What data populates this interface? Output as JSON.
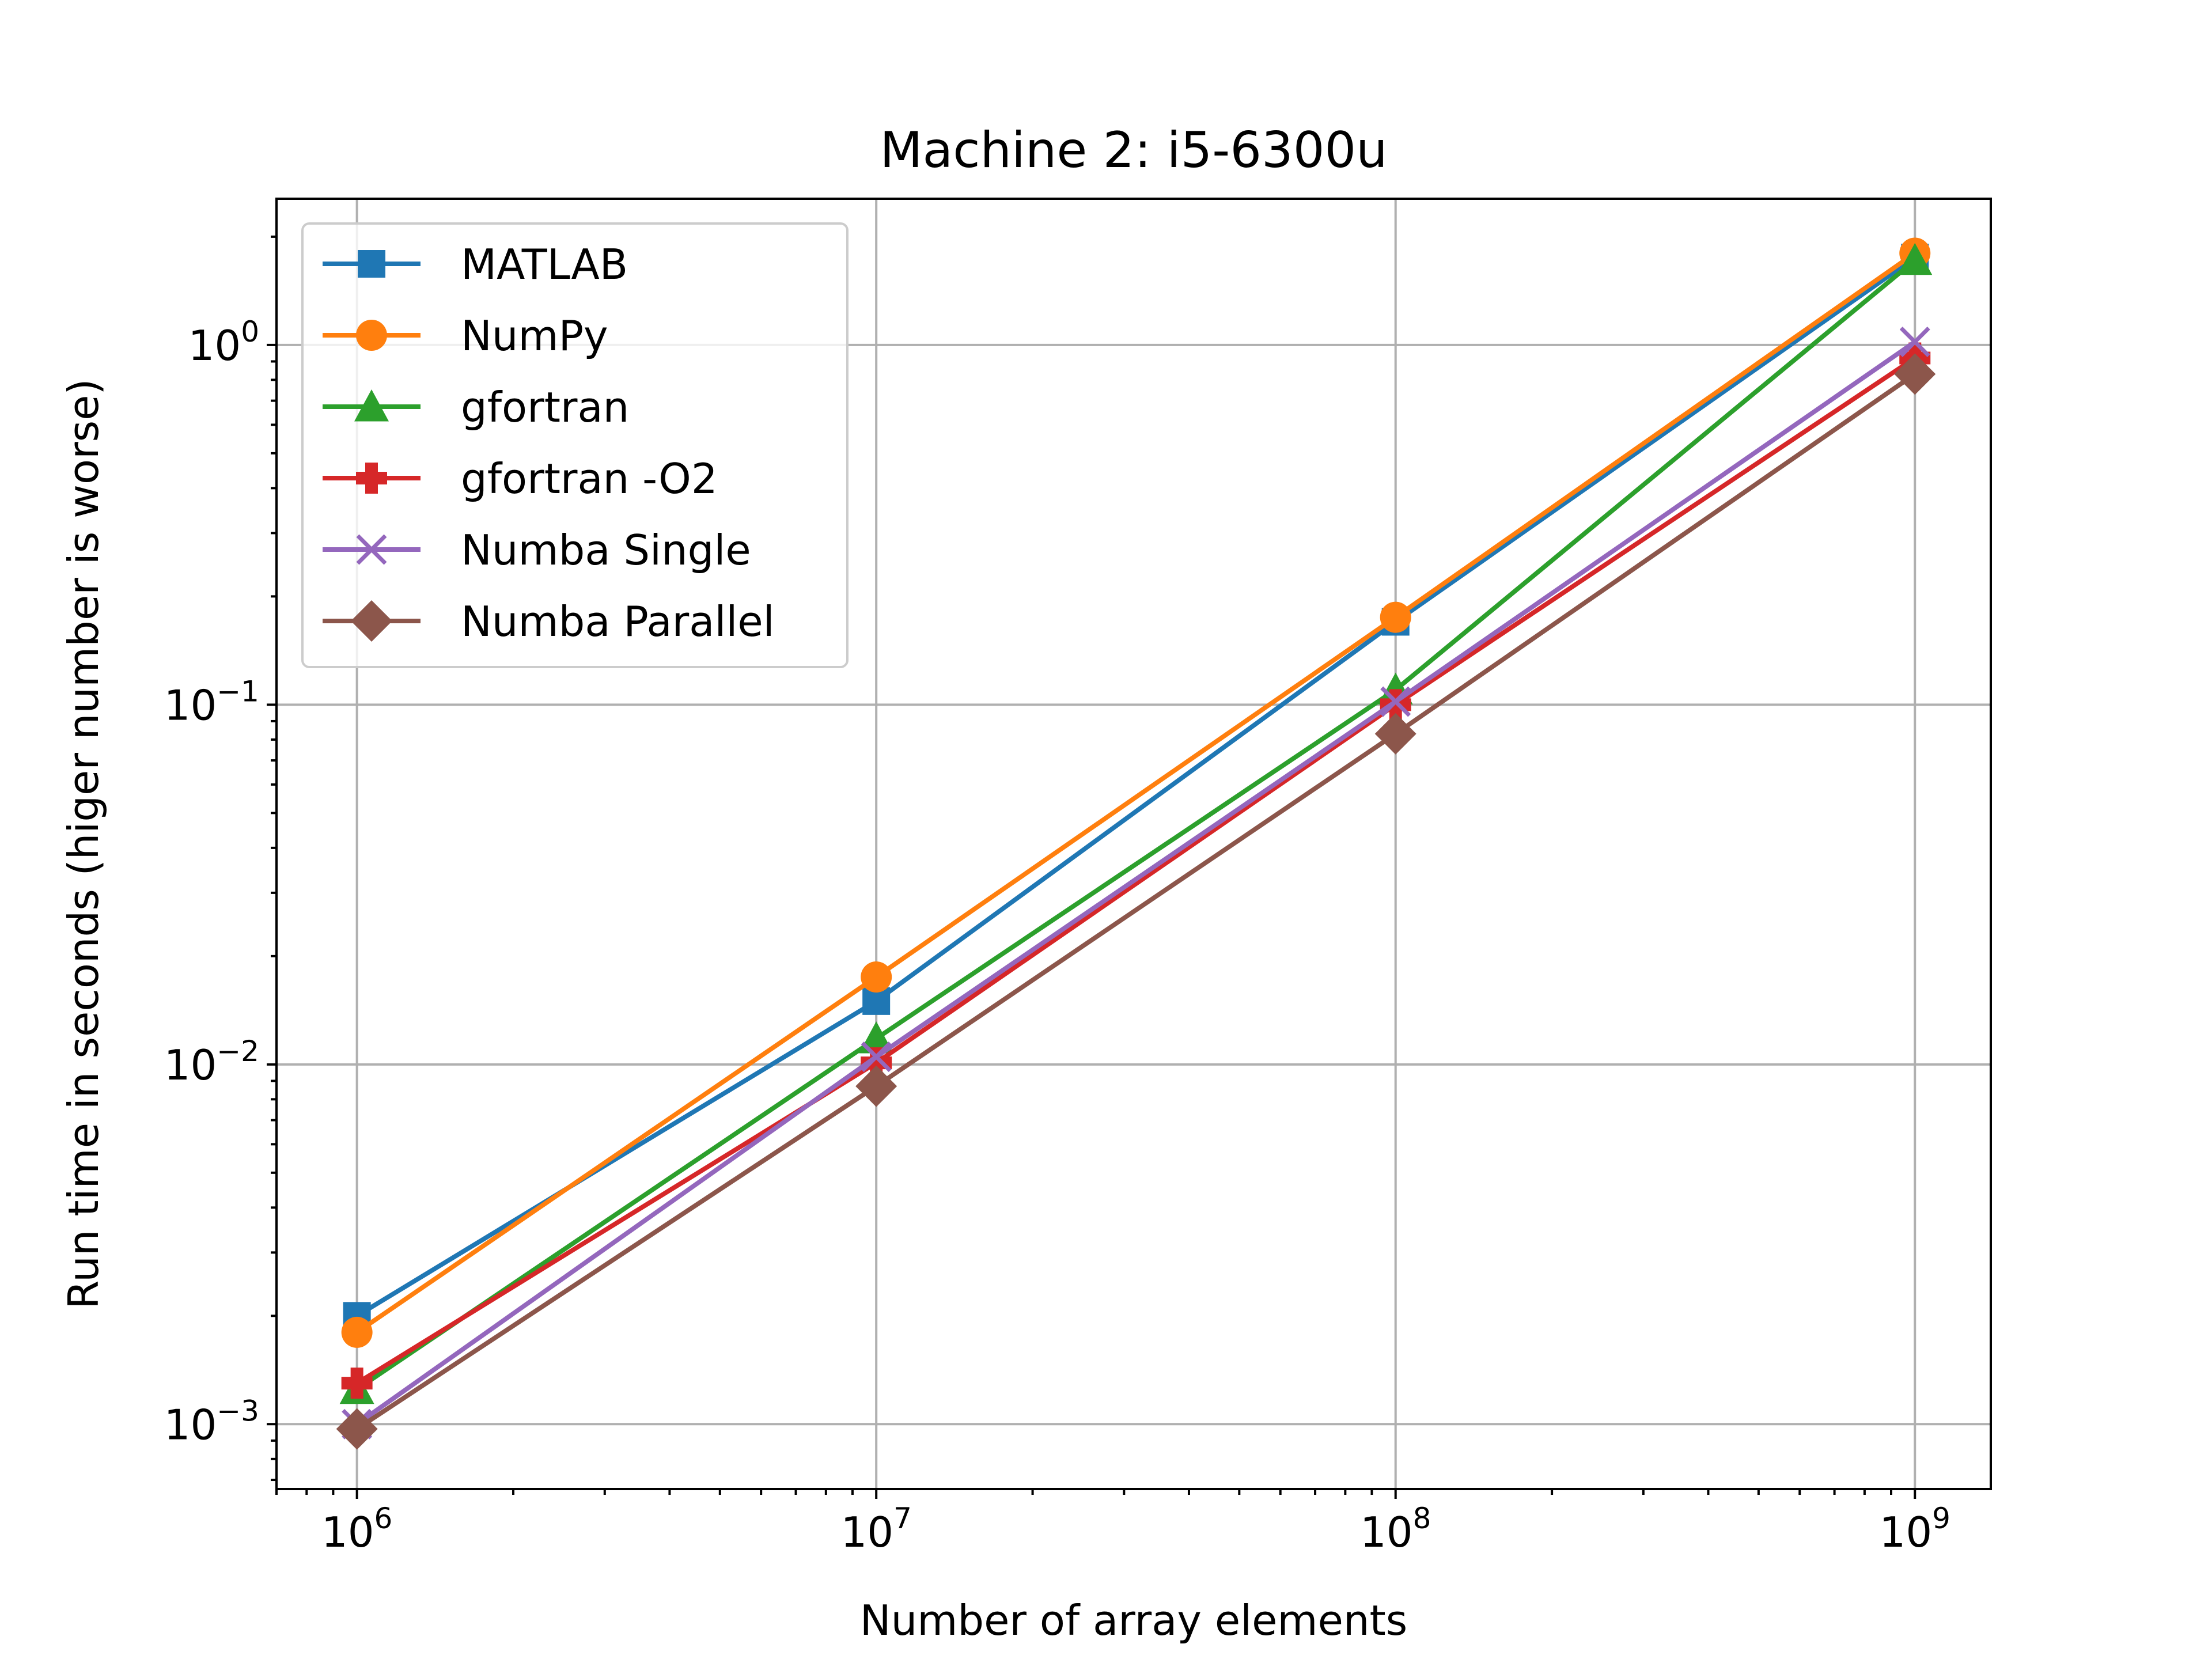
{
  "chart_data": {
    "type": "line",
    "title": "Machine 2: i5-6300u",
    "xlabel": "Number of array elements",
    "ylabel": "Run time in seconds (higer number is worse)",
    "xscale": "log",
    "yscale": "log",
    "xlim": [
      700000,
      1400000000
    ],
    "ylim": [
      0.00066,
      2.55
    ],
    "grid": true,
    "legend_position": "top-left",
    "x": [
      1000000,
      10000000,
      100000000,
      1000000000
    ],
    "x_ticks": [
      {
        "value": 1000000,
        "base": "10",
        "exp": "6"
      },
      {
        "value": 10000000,
        "base": "10",
        "exp": "7"
      },
      {
        "value": 100000000,
        "base": "10",
        "exp": "8"
      },
      {
        "value": 1000000000,
        "base": "10",
        "exp": "9"
      }
    ],
    "y_ticks": [
      {
        "value": 0.001,
        "base": "10",
        "exp": "−3"
      },
      {
        "value": 0.01,
        "base": "10",
        "exp": "−2"
      },
      {
        "value": 0.1,
        "base": "10",
        "exp": "−1"
      },
      {
        "value": 1,
        "base": "10",
        "exp": "0"
      }
    ],
    "series": [
      {
        "name": "MATLAB",
        "color": "#1f77b4",
        "marker": "square",
        "values": [
          0.002,
          0.015,
          0.17,
          1.75
        ]
      },
      {
        "name": "NumPy",
        "color": "#ff7f0e",
        "marker": "circle",
        "values": [
          0.0018,
          0.0175,
          0.175,
          1.8
        ]
      },
      {
        "name": "gfortran",
        "color": "#2ca02c",
        "marker": "triangle",
        "values": [
          0.00125,
          0.0118,
          0.11,
          1.72
        ]
      },
      {
        "name": "gfortran -O2",
        "color": "#d62728",
        "marker": "plus",
        "values": [
          0.0013,
          0.0101,
          0.1,
          0.92
        ]
      },
      {
        "name": "Numba Single",
        "color": "#9467bd",
        "marker": "x",
        "values": [
          0.001,
          0.0105,
          0.102,
          1.02
        ]
      },
      {
        "name": "Numba Parallel",
        "color": "#8c564b",
        "marker": "diamond",
        "values": [
          0.00097,
          0.0087,
          0.083,
          0.83
        ]
      }
    ]
  }
}
